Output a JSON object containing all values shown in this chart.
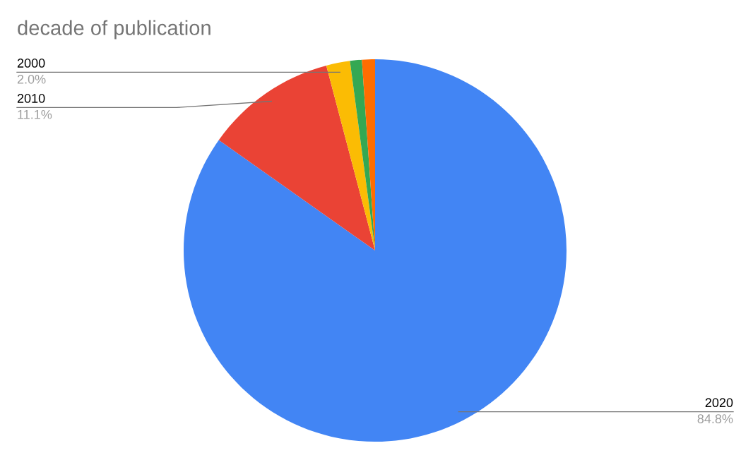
{
  "chart_data": {
    "type": "pie",
    "title": "decade of publication",
    "categories": [
      "2020",
      "2010",
      "2000",
      null,
      null
    ],
    "values": [
      84.8,
      11.1,
      2.0,
      1.0,
      1.1
    ],
    "value_labels": [
      "84.8%",
      "11.1%",
      "2.0%",
      null,
      null
    ],
    "colors": [
      "#4285f4",
      "#ea4335",
      "#fbbc04",
      "#34a853",
      "#ff6d01"
    ],
    "legend": false
  }
}
